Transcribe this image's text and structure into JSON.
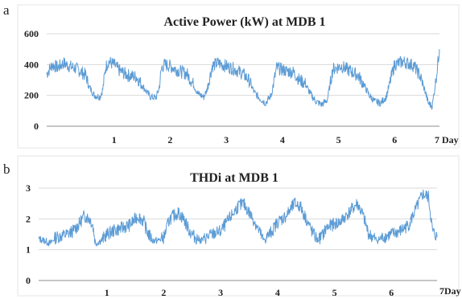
{
  "chart_data": [
    {
      "type": "line",
      "panel_label": "a",
      "title": "Active Power (kW) at MDB 1",
      "xlabel": "",
      "ylabel": "",
      "ylim": [
        0,
        600
      ],
      "y_ticks": [
        0,
        200,
        400,
        600
      ],
      "xlim": [
        0,
        7
      ],
      "x_ticks": [
        1,
        2,
        3,
        4,
        5,
        6
      ],
      "x_tick_labels": [
        "1",
        "2",
        "3",
        "4",
        "5",
        "6"
      ],
      "end_label": "7 Day",
      "grid": true,
      "color": "#5b9bd5",
      "series": [
        {
          "x": [
            0,
            0.1,
            0.2,
            0.3,
            0.4,
            0.55,
            0.7,
            0.75,
            0.85,
            0.95,
            1.0,
            1.05,
            1.1,
            1.2,
            1.3,
            1.45,
            1.6,
            1.75,
            1.85,
            1.95,
            2.0,
            2.05,
            2.1,
            2.2,
            2.35,
            2.5,
            2.6,
            2.7,
            2.8,
            2.85,
            2.95,
            3.05,
            3.2,
            3.35,
            3.5,
            3.6,
            3.7,
            3.8,
            3.9,
            4.0,
            4.1,
            4.25,
            4.4,
            4.5,
            4.6,
            4.7,
            4.8,
            4.9,
            5.0,
            5.1,
            5.25,
            5.4,
            5.55,
            5.65,
            5.75,
            5.85,
            5.95,
            6.05,
            6.2,
            6.35,
            6.5,
            6.55,
            6.65,
            6.75,
            6.8,
            6.87,
            6.93,
            7.0
          ],
          "y": [
            340,
            400,
            380,
            410,
            390,
            370,
            330,
            260,
            200,
            190,
            240,
            380,
            420,
            400,
            360,
            330,
            320,
            240,
            190,
            185,
            240,
            380,
            400,
            390,
            360,
            340,
            280,
            210,
            190,
            230,
            390,
            410,
            390,
            370,
            340,
            300,
            220,
            180,
            150,
            200,
            380,
            360,
            350,
            300,
            280,
            210,
            160,
            140,
            170,
            370,
            390,
            360,
            330,
            270,
            200,
            160,
            150,
            190,
            400,
            420,
            400,
            390,
            330,
            220,
            150,
            130,
            280,
            500
          ]
        }
      ]
    },
    {
      "type": "line",
      "panel_label": "b",
      "title": "THDi at MDB 1",
      "xlabel": "",
      "ylabel": "",
      "ylim": [
        0,
        3
      ],
      "y_ticks": [
        0,
        1,
        2,
        3
      ],
      "xlim": [
        0,
        7
      ],
      "x_ticks": [
        1,
        2,
        3,
        4,
        5,
        6
      ],
      "x_tick_labels": [
        "1",
        "2",
        "3",
        "4",
        "5",
        "6"
      ],
      "end_label": "7Day",
      "grid": true,
      "color": "#5b9bd5",
      "series": [
        {
          "x": [
            0,
            0.1,
            0.2,
            0.3,
            0.4,
            0.5,
            0.6,
            0.7,
            0.8,
            0.9,
            0.95,
            1.0,
            1.1,
            1.2,
            1.3,
            1.45,
            1.6,
            1.75,
            1.85,
            1.9,
            2.0,
            2.1,
            2.2,
            2.3,
            2.45,
            2.55,
            2.65,
            2.75,
            2.85,
            2.95,
            3.05,
            3.2,
            3.35,
            3.5,
            3.6,
            3.7,
            3.8,
            3.9,
            3.95,
            4.0,
            4.1,
            4.2,
            4.35,
            4.5,
            4.6,
            4.7,
            4.8,
            4.9,
            5.0,
            5.05,
            5.15,
            5.3,
            5.45,
            5.6,
            5.7,
            5.8,
            5.95,
            6.05,
            6.2,
            6.35,
            6.5,
            6.6,
            6.7,
            6.75,
            6.85,
            6.92,
            7.0
          ],
          "y": [
            1.35,
            1.3,
            1.2,
            1.4,
            1.45,
            1.5,
            1.6,
            1.8,
            2.1,
            2.0,
            1.8,
            1.2,
            1.3,
            1.5,
            1.6,
            1.7,
            1.8,
            2.1,
            1.9,
            1.6,
            1.3,
            1.3,
            1.4,
            2.0,
            2.2,
            2.0,
            1.6,
            1.4,
            1.3,
            1.4,
            1.5,
            1.6,
            2.0,
            2.4,
            2.5,
            2.2,
            1.9,
            1.5,
            1.3,
            1.4,
            1.6,
            1.9,
            2.1,
            2.5,
            2.4,
            2.0,
            1.6,
            1.3,
            1.5,
            1.7,
            1.8,
            1.9,
            2.2,
            2.5,
            2.1,
            1.5,
            1.3,
            1.4,
            1.5,
            1.6,
            1.8,
            2.2,
            2.6,
            2.8,
            2.7,
            1.6,
            1.4
          ]
        }
      ]
    }
  ]
}
